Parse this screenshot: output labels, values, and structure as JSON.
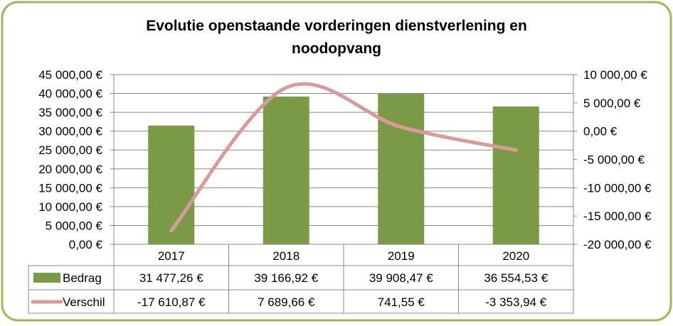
{
  "chart_data": {
    "type": "bar",
    "title_lines": [
      "Evolutie openstaande vorderingen dienstverlening en",
      "noodopvang"
    ],
    "categories": [
      "2017",
      "2018",
      "2019",
      "2020"
    ],
    "series": [
      {
        "name": "Bedrag",
        "kind": "bar",
        "axis": "left",
        "color": "#7a9a48",
        "values": [
          31477.26,
          39166.92,
          39908.47,
          36554.53
        ],
        "labels": [
          "31 477,26 €",
          "39 166,92 €",
          "39 908,47 €",
          "36 554,53 €"
        ]
      },
      {
        "name": "Verschil",
        "kind": "line",
        "axis": "right",
        "color": "#d89a9a",
        "values": [
          -17610.87,
          7689.66,
          741.55,
          -3353.94
        ],
        "labels": [
          "-17 610,87 €",
          "7 689,66 €",
          "741,55 €",
          "-3 353,94 €"
        ]
      }
    ],
    "y_left": {
      "min": 0,
      "max": 45000,
      "step": 5000,
      "tick_labels": [
        "0,00 €",
        "5 000,00 €",
        "10 000,00 €",
        "15 000,00 €",
        "20 000,00 €",
        "25 000,00 €",
        "30 000,00 €",
        "35 000,00 €",
        "40 000,00 €",
        "45 000,00 €"
      ]
    },
    "y_right": {
      "min": -20000,
      "max": 10000,
      "step": 5000,
      "tick_labels": [
        "-20 000,00 €",
        "-15 000,00 €",
        "-10 000,00 €",
        "-5 000,00 €",
        "0,00 €",
        "5 000,00 €",
        "10 000,00 €"
      ]
    },
    "grid": true,
    "legend": "data-table",
    "border_color": "#9bbb59"
  }
}
